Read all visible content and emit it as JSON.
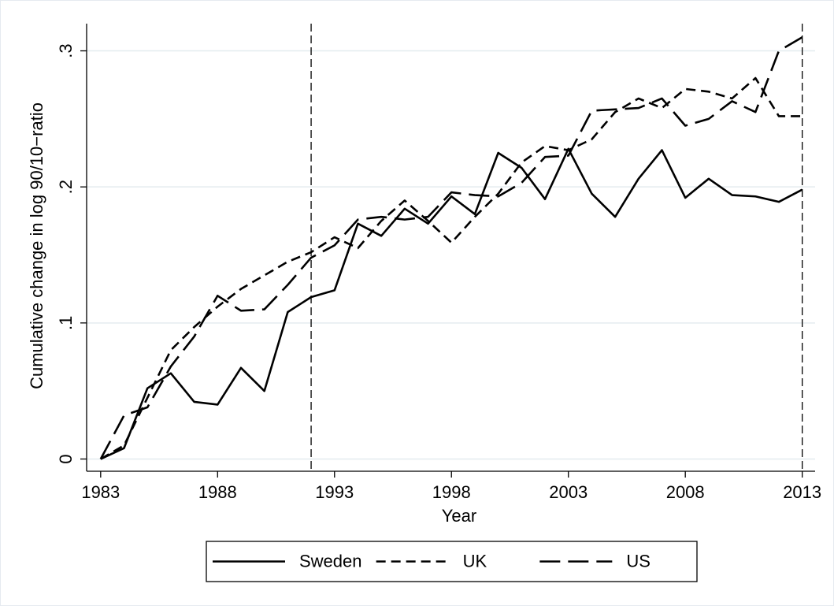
{
  "chart_data": {
    "type": "line",
    "x_label": "Year",
    "y_label": "Cumulative change in log 90/10−ratio",
    "x": [
      1983,
      1984,
      1985,
      1986,
      1987,
      1988,
      1989,
      1990,
      1991,
      1992,
      1993,
      1994,
      1995,
      1996,
      1997,
      1998,
      1999,
      2000,
      2001,
      2002,
      2003,
      2004,
      2005,
      2006,
      2007,
      2008,
      2009,
      2010,
      2011,
      2012,
      2013
    ],
    "series": [
      {
        "name": "Sweden",
        "color": "#000000",
        "dash": "solid",
        "values": [
          0,
          0.008,
          0.052,
          0.063,
          0.042,
          0.04,
          0.067,
          0.05,
          0.108,
          0.119,
          0.124,
          0.173,
          0.164,
          0.184,
          0.173,
          0.193,
          0.18,
          0.225,
          0.214,
          0.191,
          0.228,
          0.195,
          0.178,
          0.206,
          0.227,
          0.192,
          0.206,
          0.194,
          0.193,
          0.189,
          0.198
        ]
      },
      {
        "name": "UK",
        "color": "#000000",
        "dash": "short",
        "values": [
          0,
          0.01,
          0.045,
          0.08,
          0.097,
          0.112,
          0.125,
          0.135,
          0.145,
          0.152,
          0.163,
          0.155,
          0.175,
          0.19,
          0.175,
          0.159,
          0.178,
          0.195,
          0.218,
          0.23,
          0.227,
          0.235,
          0.255,
          0.265,
          0.258,
          0.272,
          0.27,
          0.265,
          0.28,
          0.252,
          0.252
        ]
      },
      {
        "name": "US",
        "color": "#000000",
        "dash": "long",
        "values": [
          0,
          0.032,
          0.038,
          0.068,
          0.09,
          0.12,
          0.109,
          0.11,
          0.128,
          0.148,
          0.157,
          0.176,
          0.178,
          0.176,
          0.178,
          0.196,
          0.194,
          0.193,
          0.203,
          0.222,
          0.223,
          0.256,
          0.257,
          0.258,
          0.265,
          0.245,
          0.25,
          0.263,
          0.255,
          0.3,
          0.31
        ]
      }
    ],
    "xlim": [
      1982.4,
      2013.55
    ],
    "ylim": [
      -0.009,
      0.32
    ],
    "xticks": [
      1983,
      1988,
      1993,
      1998,
      2003,
      2008,
      2013
    ],
    "yticks": [
      0,
      {
        "value": 0.1,
        "label": ".1"
      },
      {
        "value": 0.2,
        "label": ".2"
      },
      {
        "value": 0.3,
        "label": ".3"
      }
    ],
    "grid": true,
    "xlines": [
      1992,
      2013
    ],
    "legend": "bottom"
  }
}
